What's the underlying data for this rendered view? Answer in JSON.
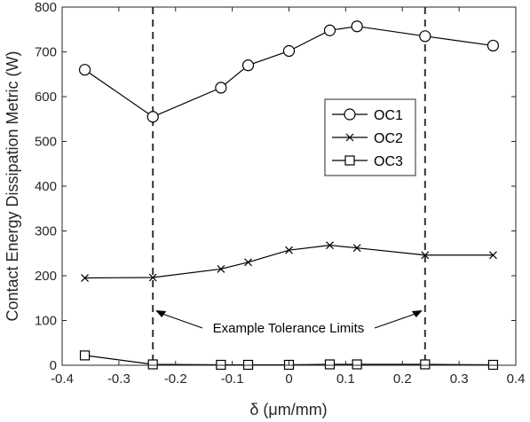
{
  "chart_data": {
    "type": "line",
    "xlabel": "δ (μm/mm)",
    "ylabel": "Contact Energy Dissipation Metric (W)",
    "xlim": [
      -0.4,
      0.4
    ],
    "ylim": [
      0,
      800
    ],
    "xticks": [
      -0.4,
      -0.3,
      -0.2,
      -0.1,
      0,
      0.1,
      0.2,
      0.3,
      0.4
    ],
    "xtick_labels": [
      "-0.4",
      "-0.3",
      "-0.2",
      "-0.1",
      "0",
      "0.1",
      "0.2",
      "0.3",
      "0.4"
    ],
    "yticks": [
      0,
      100,
      200,
      300,
      400,
      500,
      600,
      700,
      800
    ],
    "ytick_labels": [
      "0",
      "100",
      "200",
      "300",
      "400",
      "500",
      "600",
      "700",
      "800"
    ],
    "x": [
      -0.36,
      -0.24,
      -0.12,
      -0.072,
      0,
      0.072,
      0.12,
      0.24,
      0.36
    ],
    "series": [
      {
        "name": "OC1",
        "marker": "circle",
        "values": [
          660,
          555,
          620,
          670,
          702,
          748,
          757,
          735,
          714
        ]
      },
      {
        "name": "OC2",
        "marker": "x",
        "values": [
          195,
          196,
          215,
          230,
          257,
          268,
          262,
          246,
          246
        ]
      },
      {
        "name": "OC3",
        "marker": "square",
        "values": [
          22,
          2,
          1,
          1,
          1,
          2,
          2,
          2,
          1
        ]
      }
    ],
    "tolerance_limits": [
      -0.24,
      0.24
    ],
    "annotation": "Example Tolerance Limits",
    "legend_position": "center-right",
    "grid": false
  }
}
